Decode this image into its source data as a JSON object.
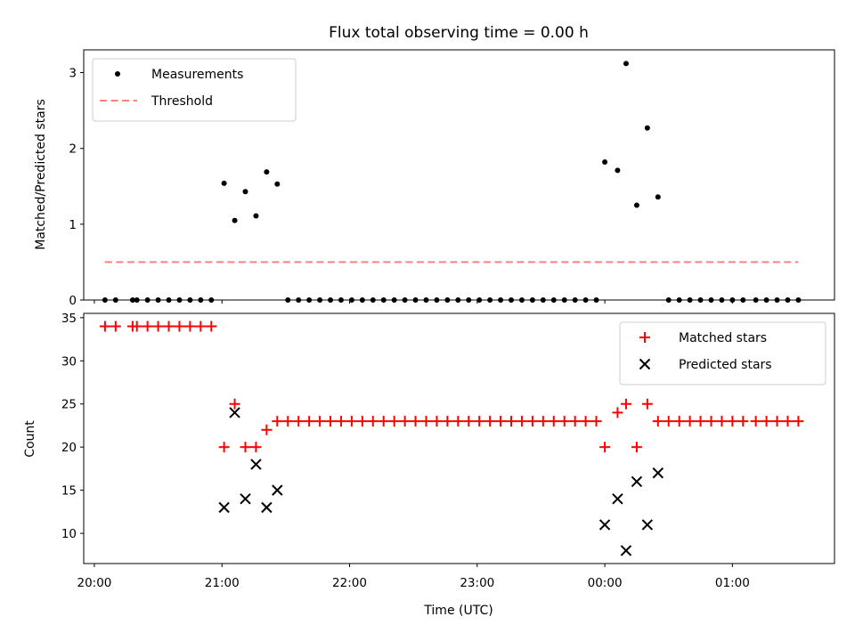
{
  "chart_data": [
    {
      "type": "scatter",
      "title": "Flux total observing time = 0.00 h",
      "xlabel": "",
      "ylabel": "Matched/Predicted stars",
      "xlim": [
        "19:55",
        "01:48"
      ],
      "ylim": [
        0,
        3.3
      ],
      "yticks": [
        0,
        1,
        2,
        3
      ],
      "grid": false,
      "legend": {
        "placement": "upper-left",
        "entries": [
          {
            "label": "Measurements",
            "marker": "dot",
            "color": "#000000"
          },
          {
            "label": "Threshold",
            "marker": "dashed-line",
            "color": "#ff8080"
          }
        ]
      },
      "series": [
        {
          "name": "Measurements",
          "color": "#000000",
          "points": [
            [
              "20:05",
              0
            ],
            [
              "20:10",
              0
            ],
            [
              "20:18",
              0
            ],
            [
              "20:20",
              0
            ],
            [
              "20:25",
              0
            ],
            [
              "20:30",
              0
            ],
            [
              "20:35",
              0
            ],
            [
              "20:40",
              0
            ],
            [
              "20:45",
              0
            ],
            [
              "20:50",
              0
            ],
            [
              "20:55",
              0
            ],
            [
              "21:01",
              1.54
            ],
            [
              "21:06",
              1.05
            ],
            [
              "21:11",
              1.43
            ],
            [
              "21:16",
              1.11
            ],
            [
              "21:21",
              1.69
            ],
            [
              "21:26",
              1.53
            ],
            [
              "21:31",
              0
            ],
            [
              "21:36",
              0
            ],
            [
              "21:41",
              0
            ],
            [
              "21:46",
              0
            ],
            [
              "21:51",
              0
            ],
            [
              "21:56",
              0
            ],
            [
              "22:01",
              0
            ],
            [
              "22:06",
              0
            ],
            [
              "22:11",
              0
            ],
            [
              "22:16",
              0
            ],
            [
              "22:21",
              0
            ],
            [
              "22:26",
              0
            ],
            [
              "22:31",
              0
            ],
            [
              "22:36",
              0
            ],
            [
              "22:41",
              0
            ],
            [
              "22:46",
              0
            ],
            [
              "22:51",
              0
            ],
            [
              "22:56",
              0
            ],
            [
              "23:01",
              0
            ],
            [
              "23:06",
              0
            ],
            [
              "23:11",
              0
            ],
            [
              "23:16",
              0
            ],
            [
              "23:21",
              0
            ],
            [
              "23:26",
              0
            ],
            [
              "23:31",
              0
            ],
            [
              "23:36",
              0
            ],
            [
              "23:41",
              0
            ],
            [
              "23:46",
              0
            ],
            [
              "23:51",
              0
            ],
            [
              "23:56",
              0
            ],
            [
              "00:00",
              1.82
            ],
            [
              "00:06",
              1.71
            ],
            [
              "00:10",
              3.12
            ],
            [
              "00:15",
              1.25
            ],
            [
              "00:20",
              2.27
            ],
            [
              "00:25",
              1.36
            ],
            [
              "00:30",
              0
            ],
            [
              "00:35",
              0
            ],
            [
              "00:40",
              0
            ],
            [
              "00:45",
              0
            ],
            [
              "00:50",
              0
            ],
            [
              "00:55",
              0
            ],
            [
              "01:00",
              0
            ],
            [
              "01:05",
              0
            ],
            [
              "01:11",
              0
            ],
            [
              "01:16",
              0
            ],
            [
              "01:21",
              0
            ],
            [
              "01:26",
              0
            ],
            [
              "01:31",
              0
            ]
          ]
        },
        {
          "name": "Threshold",
          "color": "#ff8080",
          "style": "dashed",
          "points": [
            [
              "20:05",
              0.5
            ],
            [
              "01:31",
              0.5
            ]
          ]
        }
      ]
    },
    {
      "type": "scatter",
      "title": "",
      "xlabel": "Time (UTC)",
      "ylabel": "Count",
      "xlim": [
        "19:55",
        "01:48"
      ],
      "ylim": [
        6.5,
        35.5
      ],
      "yticks": [
        10,
        15,
        20,
        25,
        30,
        35
      ],
      "xticks": [
        "20:00",
        "21:00",
        "22:00",
        "23:00",
        "00:00",
        "01:00"
      ],
      "grid": false,
      "legend": {
        "placement": "upper-right",
        "entries": [
          {
            "label": "Matched stars",
            "marker": "plus",
            "color": "#ff0000"
          },
          {
            "label": "Predicted stars",
            "marker": "x",
            "color": "#000000"
          }
        ]
      },
      "series": [
        {
          "name": "Matched stars",
          "color": "#ff0000",
          "marker": "plus",
          "points": [
            [
              "20:05",
              34
            ],
            [
              "20:10",
              34
            ],
            [
              "20:18",
              34
            ],
            [
              "20:20",
              34
            ],
            [
              "20:25",
              34
            ],
            [
              "20:30",
              34
            ],
            [
              "20:35",
              34
            ],
            [
              "20:40",
              34
            ],
            [
              "20:45",
              34
            ],
            [
              "20:50",
              34
            ],
            [
              "20:55",
              34
            ],
            [
              "21:01",
              20
            ],
            [
              "21:06",
              25
            ],
            [
              "21:11",
              20
            ],
            [
              "21:16",
              20
            ],
            [
              "21:21",
              22
            ],
            [
              "21:26",
              23
            ],
            [
              "21:31",
              23
            ],
            [
              "21:36",
              23
            ],
            [
              "21:41",
              23
            ],
            [
              "21:46",
              23
            ],
            [
              "21:51",
              23
            ],
            [
              "21:56",
              23
            ],
            [
              "22:01",
              23
            ],
            [
              "22:06",
              23
            ],
            [
              "22:11",
              23
            ],
            [
              "22:16",
              23
            ],
            [
              "22:21",
              23
            ],
            [
              "22:26",
              23
            ],
            [
              "22:31",
              23
            ],
            [
              "22:36",
              23
            ],
            [
              "22:41",
              23
            ],
            [
              "22:46",
              23
            ],
            [
              "22:51",
              23
            ],
            [
              "22:56",
              23
            ],
            [
              "23:01",
              23
            ],
            [
              "23:06",
              23
            ],
            [
              "23:11",
              23
            ],
            [
              "23:16",
              23
            ],
            [
              "23:21",
              23
            ],
            [
              "23:26",
              23
            ],
            [
              "23:31",
              23
            ],
            [
              "23:36",
              23
            ],
            [
              "23:41",
              23
            ],
            [
              "23:46",
              23
            ],
            [
              "23:51",
              23
            ],
            [
              "23:56",
              23
            ],
            [
              "00:00",
              20
            ],
            [
              "00:06",
              24
            ],
            [
              "00:10",
              25
            ],
            [
              "00:15",
              20
            ],
            [
              "00:20",
              25
            ],
            [
              "00:25",
              23
            ],
            [
              "00:30",
              23
            ],
            [
              "00:35",
              23
            ],
            [
              "00:40",
              23
            ],
            [
              "00:45",
              23
            ],
            [
              "00:50",
              23
            ],
            [
              "00:55",
              23
            ],
            [
              "01:00",
              23
            ],
            [
              "01:05",
              23
            ],
            [
              "01:11",
              23
            ],
            [
              "01:16",
              23
            ],
            [
              "01:21",
              23
            ],
            [
              "01:26",
              23
            ],
            [
              "01:31",
              23
            ]
          ]
        },
        {
          "name": "Predicted stars",
          "color": "#000000",
          "marker": "x",
          "points": [
            [
              "21:01",
              13
            ],
            [
              "21:06",
              24
            ],
            [
              "21:11",
              14
            ],
            [
              "21:16",
              18
            ],
            [
              "21:21",
              13
            ],
            [
              "21:26",
              15
            ],
            [
              "00:00",
              11
            ],
            [
              "00:06",
              14
            ],
            [
              "00:10",
              8
            ],
            [
              "00:15",
              16
            ],
            [
              "00:20",
              11
            ],
            [
              "00:25",
              17
            ]
          ]
        }
      ]
    }
  ]
}
